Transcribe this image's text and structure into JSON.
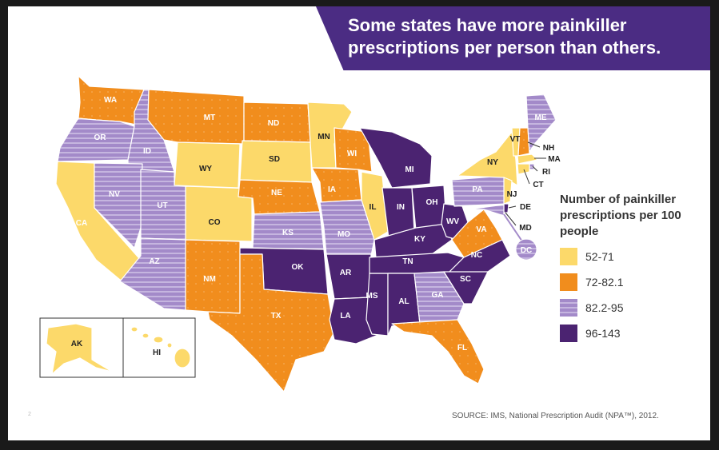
{
  "title": "Some states have more painkiller prescriptions per person than others.",
  "legend": {
    "title": "Number of painkiller prescriptions per 100 people",
    "items": [
      {
        "label": "52-71",
        "color": "#fcd96a"
      },
      {
        "label": "72-82.1",
        "color": "#f18d1d"
      },
      {
        "label": "82.2-95",
        "color": "#a38ac9"
      },
      {
        "label": "96-143",
        "color": "#4b2371"
      }
    ]
  },
  "source": "SOURCE: IMS, National Prescription Audit (NPA™), 2012.",
  "page_number": "2",
  "state_labels": {
    "WA": "WA",
    "OR": "OR",
    "CA": "CA",
    "ID": "ID",
    "NV": "NV",
    "MT": "MT",
    "WY": "WY",
    "UT": "UT",
    "AZ": "AZ",
    "CO": "CO",
    "NM": "NM",
    "ND": "ND",
    "SD": "SD",
    "NE": "NE",
    "KS": "KS",
    "OK": "OK",
    "TX": "TX",
    "MN": "MN",
    "IA": "IA",
    "MO": "MO",
    "AR": "AR",
    "LA": "LA",
    "WI": "WI",
    "IL": "IL",
    "MS": "MS",
    "MI": "MI",
    "IN": "IN",
    "KY": "KY",
    "TN": "TN",
    "AL": "AL",
    "OH": "OH",
    "GA": "GA",
    "FL": "FL",
    "WV": "WV",
    "VA": "VA",
    "NC": "NC",
    "SC": "SC",
    "PA": "PA",
    "NY": "NY",
    "VT": "VT",
    "NH": "NH",
    "ME": "ME",
    "MA": "MA",
    "RI": "RI",
    "CT": "CT",
    "NJ": "NJ",
    "DE": "DE",
    "MD": "MD",
    "DC": "DC",
    "AK": "AK",
    "HI": "HI"
  },
  "state_values": {
    "WA": "72-82.1",
    "OR": "82.2-95",
    "CA": "52-71",
    "ID": "82.2-95",
    "NV": "82.2-95",
    "MT": "72-82.1",
    "WY": "52-71",
    "UT": "82.2-95",
    "AZ": "82.2-95",
    "CO": "52-71",
    "NM": "72-82.1",
    "ND": "72-82.1",
    "SD": "52-71",
    "NE": "72-82.1",
    "KS": "82.2-95",
    "OK": "96-143",
    "TX": "72-82.1",
    "MN": "52-71",
    "IA": "72-82.1",
    "MO": "82.2-95",
    "AR": "96-143",
    "LA": "96-143",
    "WI": "72-82.1",
    "IL": "52-71",
    "MS": "96-143",
    "MI": "96-143",
    "IN": "96-143",
    "KY": "96-143",
    "TN": "96-143",
    "AL": "96-143",
    "OH": "96-143",
    "GA": "82.2-95",
    "FL": "72-82.1",
    "WV": "96-143",
    "VA": "72-82.1",
    "NC": "96-143",
    "SC": "96-143",
    "PA": "82.2-95",
    "NY": "52-71",
    "VT": "52-71",
    "NH": "72-82.1",
    "ME": "82.2-95",
    "MA": "52-71",
    "RI": "82.2-95",
    "CT": "52-71",
    "NJ": "52-71",
    "DE": "96-143",
    "MD": "82.2-95",
    "DC": "82.2-95",
    "AK": "52-71",
    "HI": "52-71"
  }
}
